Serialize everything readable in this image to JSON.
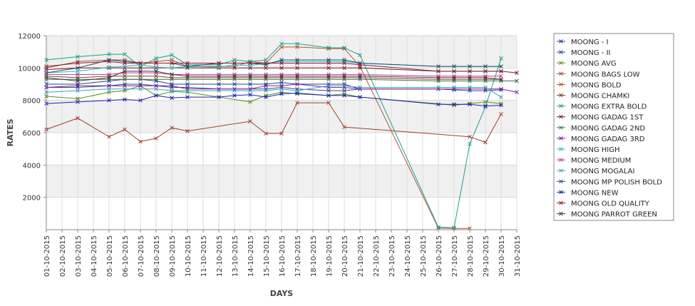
{
  "chart_data": {
    "type": "line",
    "xlabel": "DAYS",
    "ylabel": "RATES",
    "ylim": [
      0,
      12000
    ],
    "y_ticks": [
      2000,
      4000,
      6000,
      8000,
      10000,
      12000
    ],
    "grid": "horizontal alternating bands",
    "legend_position": "right",
    "categories": [
      "01-10-2015",
      "02-10-2015",
      "03-10-2015",
      "04-10-2015",
      "05-10-2015",
      "06-10-2015",
      "07-10-2015",
      "08-10-2015",
      "09-10-2015",
      "10-10-2015",
      "11-10-2015",
      "12-10-2015",
      "13-10-2015",
      "14-10-2015",
      "15-10-2015",
      "16-10-2015",
      "17-10-2015",
      "18-10-2015",
      "19-10-2015",
      "20-10-2015",
      "21-10-2015",
      "22-10-2015",
      "23-10-2015",
      "24-10-2015",
      "25-10-2015",
      "26-10-2015",
      "27-10-2015",
      "28-10-2015",
      "29-10-2015",
      "30-10-2015",
      "31-10-2015"
    ],
    "series": [
      {
        "name": "MOONG - I",
        "color": "#1f3f9f",
        "values": [
          9000,
          null,
          9000,
          null,
          9200,
          9300,
          9300,
          9200,
          9000,
          9000,
          null,
          9000,
          9000,
          9000,
          9000,
          9100,
          9000,
          null,
          9000,
          9000,
          8700,
          null,
          null,
          null,
          null,
          null,
          null,
          null,
          null,
          null,
          null
        ]
      },
      {
        "name": "MOONG - II",
        "color": "#2a4f7f",
        "values": [
          8800,
          null,
          8800,
          null,
          8900,
          9000,
          9000,
          8900,
          8800,
          8800,
          null,
          8700,
          8700,
          8700,
          8700,
          8800,
          8700,
          null,
          8600,
          8600,
          8700,
          null,
          null,
          null,
          null,
          8700,
          8650,
          8600,
          8600,
          8650,
          null
        ]
      },
      {
        "name": "MOONG AVG",
        "color": "#5a8f1f",
        "values": [
          8250,
          null,
          8100,
          null,
          8500,
          8600,
          8900,
          8300,
          8550,
          8500,
          null,
          8200,
          null,
          7900,
          8300,
          8500,
          8400,
          null,
          8300,
          8400,
          8200,
          null,
          null,
          null,
          null,
          null,
          7700,
          7800,
          7900,
          7800,
          null
        ]
      },
      {
        "name": "MOONG BAGS LOW",
        "color": "#9f3f2f",
        "values": [
          6200,
          null,
          6900,
          null,
          5750,
          6200,
          5450,
          5650,
          6300,
          6100,
          null,
          null,
          null,
          6700,
          5950,
          5950,
          7850,
          null,
          7850,
          6350,
          null,
          null,
          null,
          null,
          null,
          null,
          null,
          5750,
          5400,
          7150,
          null
        ]
      },
      {
        "name": "MOONG BOLD",
        "color": "#b0562a",
        "values": [
          10000,
          null,
          10400,
          null,
          10500,
          10500,
          10300,
          10400,
          10500,
          10100,
          null,
          10100,
          10100,
          10400,
          10300,
          11300,
          11300,
          null,
          11200,
          11200,
          10100,
          null,
          null,
          null,
          null,
          100,
          80,
          80,
          null,
          null,
          null
        ]
      },
      {
        "name": "MOONG CHAMKI",
        "color": "#6f4f1f",
        "values": [
          9500,
          null,
          9400,
          null,
          9500,
          9500,
          9500,
          9500,
          9400,
          9400,
          null,
          9400,
          9400,
          9400,
          9400,
          9400,
          9400,
          null,
          9400,
          9400,
          9400,
          null,
          null,
          null,
          null,
          9300,
          9300,
          9300,
          9300,
          9300,
          null
        ]
      },
      {
        "name": "MOONG EXTRA BOLD",
        "color": "#1f9f8f",
        "values": [
          10500,
          null,
          10700,
          null,
          10850,
          10850,
          10100,
          10600,
          10800,
          10200,
          null,
          10200,
          10500,
          10400,
          10500,
          11500,
          11500,
          null,
          11250,
          11250,
          10800,
          null,
          null,
          null,
          null,
          150,
          120,
          5300,
          7600,
          10600,
          null
        ]
      },
      {
        "name": "MOONG GADAG 1ST",
        "color": "#6f1f2f",
        "values": [
          9900,
          null,
          10000,
          null,
          10000,
          10000,
          10000,
          10000,
          10000,
          10000,
          null,
          10000,
          10000,
          10000,
          10000,
          10000,
          10000,
          null,
          10000,
          10000,
          10000,
          null,
          null,
          null,
          null,
          9800,
          9800,
          9800,
          9800,
          9800,
          9700
        ]
      },
      {
        "name": "MOONG GADAG 2ND",
        "color": "#3f6f4f",
        "values": [
          9300,
          null,
          9300,
          null,
          9300,
          9300,
          9300,
          9300,
          9300,
          9300,
          null,
          9300,
          9300,
          9300,
          9300,
          9300,
          9300,
          null,
          9300,
          9300,
          9300,
          null,
          null,
          null,
          null,
          9200,
          9200,
          9200,
          9200,
          9200,
          9200
        ]
      },
      {
        "name": "MOONG GADAG 3RD",
        "color": "#7f1f9f",
        "values": [
          8800,
          null,
          8900,
          null,
          8900,
          8900,
          8900,
          8900,
          8900,
          8700,
          null,
          8700,
          8700,
          8700,
          8900,
          8900,
          9000,
          null,
          8800,
          8800,
          8700,
          null,
          null,
          null,
          null,
          8700,
          8700,
          8700,
          8700,
          8700,
          8500
        ]
      },
      {
        "name": "MOONG HIGH",
        "color": "#2fbfbf",
        "values": [
          9700,
          null,
          9800,
          null,
          10050,
          10100,
          10200,
          10050,
          10000,
          10100,
          null,
          10050,
          10200,
          10150,
          10300,
          10400,
          10400,
          null,
          10400,
          10400,
          10300,
          null,
          null,
          null,
          null,
          10100,
          10100,
          10100,
          10100,
          10100,
          null
        ]
      },
      {
        "name": "MOONG MEDIUM",
        "color": "#b040a0",
        "values": [
          9600,
          null,
          9600,
          null,
          9600,
          9700,
          9700,
          9700,
          9600,
          9600,
          null,
          9600,
          9600,
          9600,
          9600,
          9600,
          9600,
          null,
          9600,
          9600,
          9600,
          null,
          null,
          null,
          null,
          9500,
          9500,
          9500,
          9500,
          9500,
          null
        ]
      },
      {
        "name": "MOONG MOGALAI",
        "color": "#3fa0c0",
        "values": [
          8500,
          null,
          8600,
          null,
          8700,
          8700,
          8700,
          8700,
          8600,
          8600,
          null,
          8600,
          8600,
          8600,
          8600,
          8700,
          8600,
          null,
          8900,
          8900,
          8800,
          null,
          null,
          null,
          null,
          8800,
          8800,
          8800,
          8800,
          8200,
          null
        ]
      },
      {
        "name": "MOONG MP POLISH BOLD",
        "color": "#1f4f6f",
        "values": [
          9700,
          null,
          10000,
          null,
          10500,
          10400,
          10300,
          10300,
          10300,
          10100,
          null,
          10300,
          10300,
          10300,
          10200,
          10500,
          10500,
          null,
          10500,
          10500,
          10300,
          null,
          null,
          null,
          null,
          10100,
          10100,
          10100,
          10100,
          10100,
          null
        ]
      },
      {
        "name": "MOONG NEW",
        "color": "#1f1faf",
        "values": [
          7800,
          null,
          7900,
          null,
          8000,
          8050,
          8000,
          8300,
          8150,
          8200,
          null,
          8200,
          8300,
          8350,
          8200,
          8400,
          8450,
          null,
          8300,
          8300,
          8200,
          null,
          null,
          null,
          null,
          7750,
          7750,
          7750,
          7650,
          7700,
          null
        ]
      },
      {
        "name": "MOONG OLD QUALITY",
        "color": "#8f1f3f",
        "values": [
          10100,
          null,
          10300,
          null,
          10400,
          10300,
          10300,
          10300,
          10300,
          10300,
          null,
          10300,
          10300,
          10300,
          10300,
          10300,
          10300,
          null,
          10300,
          10300,
          10200,
          null,
          null,
          null,
          null,
          9800,
          9800,
          9800,
          9800,
          9800,
          null
        ]
      },
      {
        "name": "MOONG PARROT GREEN",
        "color": "#4f2f3f",
        "values": [
          9400,
          null,
          9200,
          null,
          9400,
          9800,
          9800,
          9800,
          9600,
          9500,
          null,
          9500,
          9500,
          9500,
          9500,
          9500,
          9500,
          null,
          9500,
          9500,
          9500,
          null,
          null,
          null,
          null,
          9400,
          9400,
          9400,
          9400,
          9300,
          null
        ]
      }
    ]
  }
}
